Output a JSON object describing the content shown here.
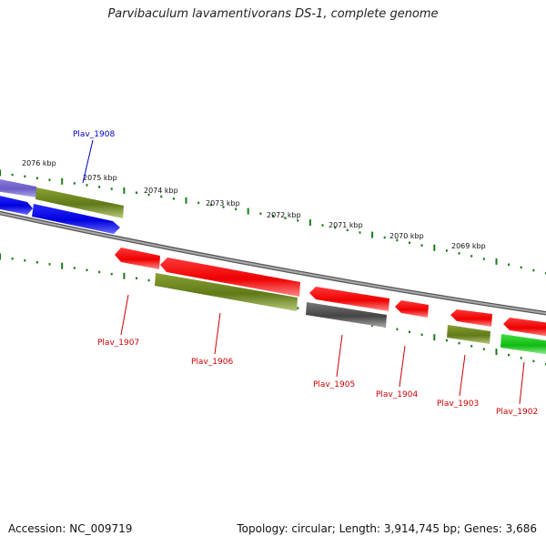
{
  "title": "Parvibaculum lavamentivorans DS-1, complete genome",
  "footer": {
    "accession": "Accession: NC_009719",
    "summary": "Topology: circular; Length: 3,914,745 bp; Genes: 3,686"
  },
  "colors": {
    "red": "#ee0000",
    "olive": "#6f8a1e",
    "blue": "#0000ee",
    "gray": "#555555",
    "green": "#22cc22",
    "lavender": "#7766cc",
    "tick": "#1a7a1a",
    "backbone": "#888888"
  },
  "tick_labels": [
    "2076 kbp",
    "2075 kbp",
    "2074 kbp",
    "2073 kbp",
    "2072 kbp",
    "2071 kbp",
    "2070 kbp",
    "2069 kbp"
  ],
  "genes": [
    {
      "label": "Plav_1908",
      "color": "blue"
    },
    {
      "label": "Plav_1907",
      "color": "red"
    },
    {
      "label": "Plav_1906",
      "color": "red"
    },
    {
      "label": "Plav_1905",
      "color": "red"
    },
    {
      "label": "Plav_1904",
      "color": "red"
    },
    {
      "label": "Plav_1903",
      "color": "red"
    },
    {
      "label": "Plav_1902",
      "color": "red"
    }
  ]
}
